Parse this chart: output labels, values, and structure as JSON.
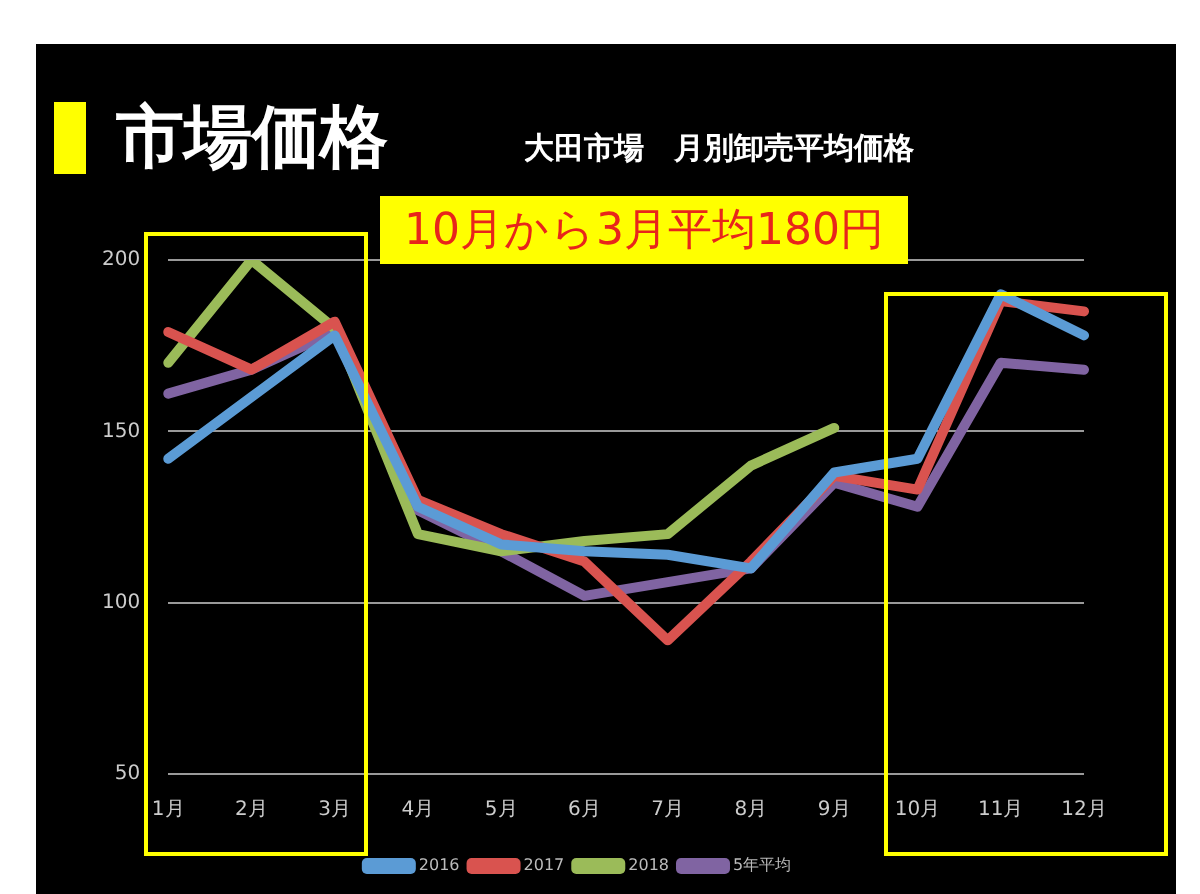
{
  "chart_data": {
    "type": "line",
    "title": "市場価格",
    "subtitle": "大田市場　月別卸売平均価格",
    "annotations": [
      "10月から3月平均180円"
    ],
    "categories": [
      "1月",
      "2月",
      "3月",
      "4月",
      "5月",
      "6月",
      "7月",
      "8月",
      "9月",
      "10月",
      "11月",
      "12月"
    ],
    "series": [
      {
        "name": "2016",
        "color": "#5b9bd5",
        "values": [
          142,
          160,
          178,
          128,
          117,
          115,
          114,
          110,
          138,
          142,
          190,
          178
        ]
      },
      {
        "name": "2017",
        "color": "#d9534f",
        "values": [
          179,
          168,
          182,
          130,
          120,
          112,
          89,
          112,
          137,
          133,
          188,
          185
        ]
      },
      {
        "name": "2018",
        "color": "#9bbb59",
        "values": [
          170,
          200,
          180,
          120,
          115,
          118,
          120,
          140,
          151,
          null,
          null,
          null
        ]
      },
      {
        "name": "5年平均",
        "color": "#8064a2",
        "values": [
          161,
          168,
          179,
          127,
          115,
          102,
          106,
          110,
          135,
          128,
          170,
          168
        ]
      }
    ],
    "ylim": [
      50,
      200
    ],
    "yticks": [
      50,
      100,
      150,
      200
    ],
    "grid": "y",
    "legend": "bottom",
    "marker": "none",
    "line_style": "solid"
  }
}
